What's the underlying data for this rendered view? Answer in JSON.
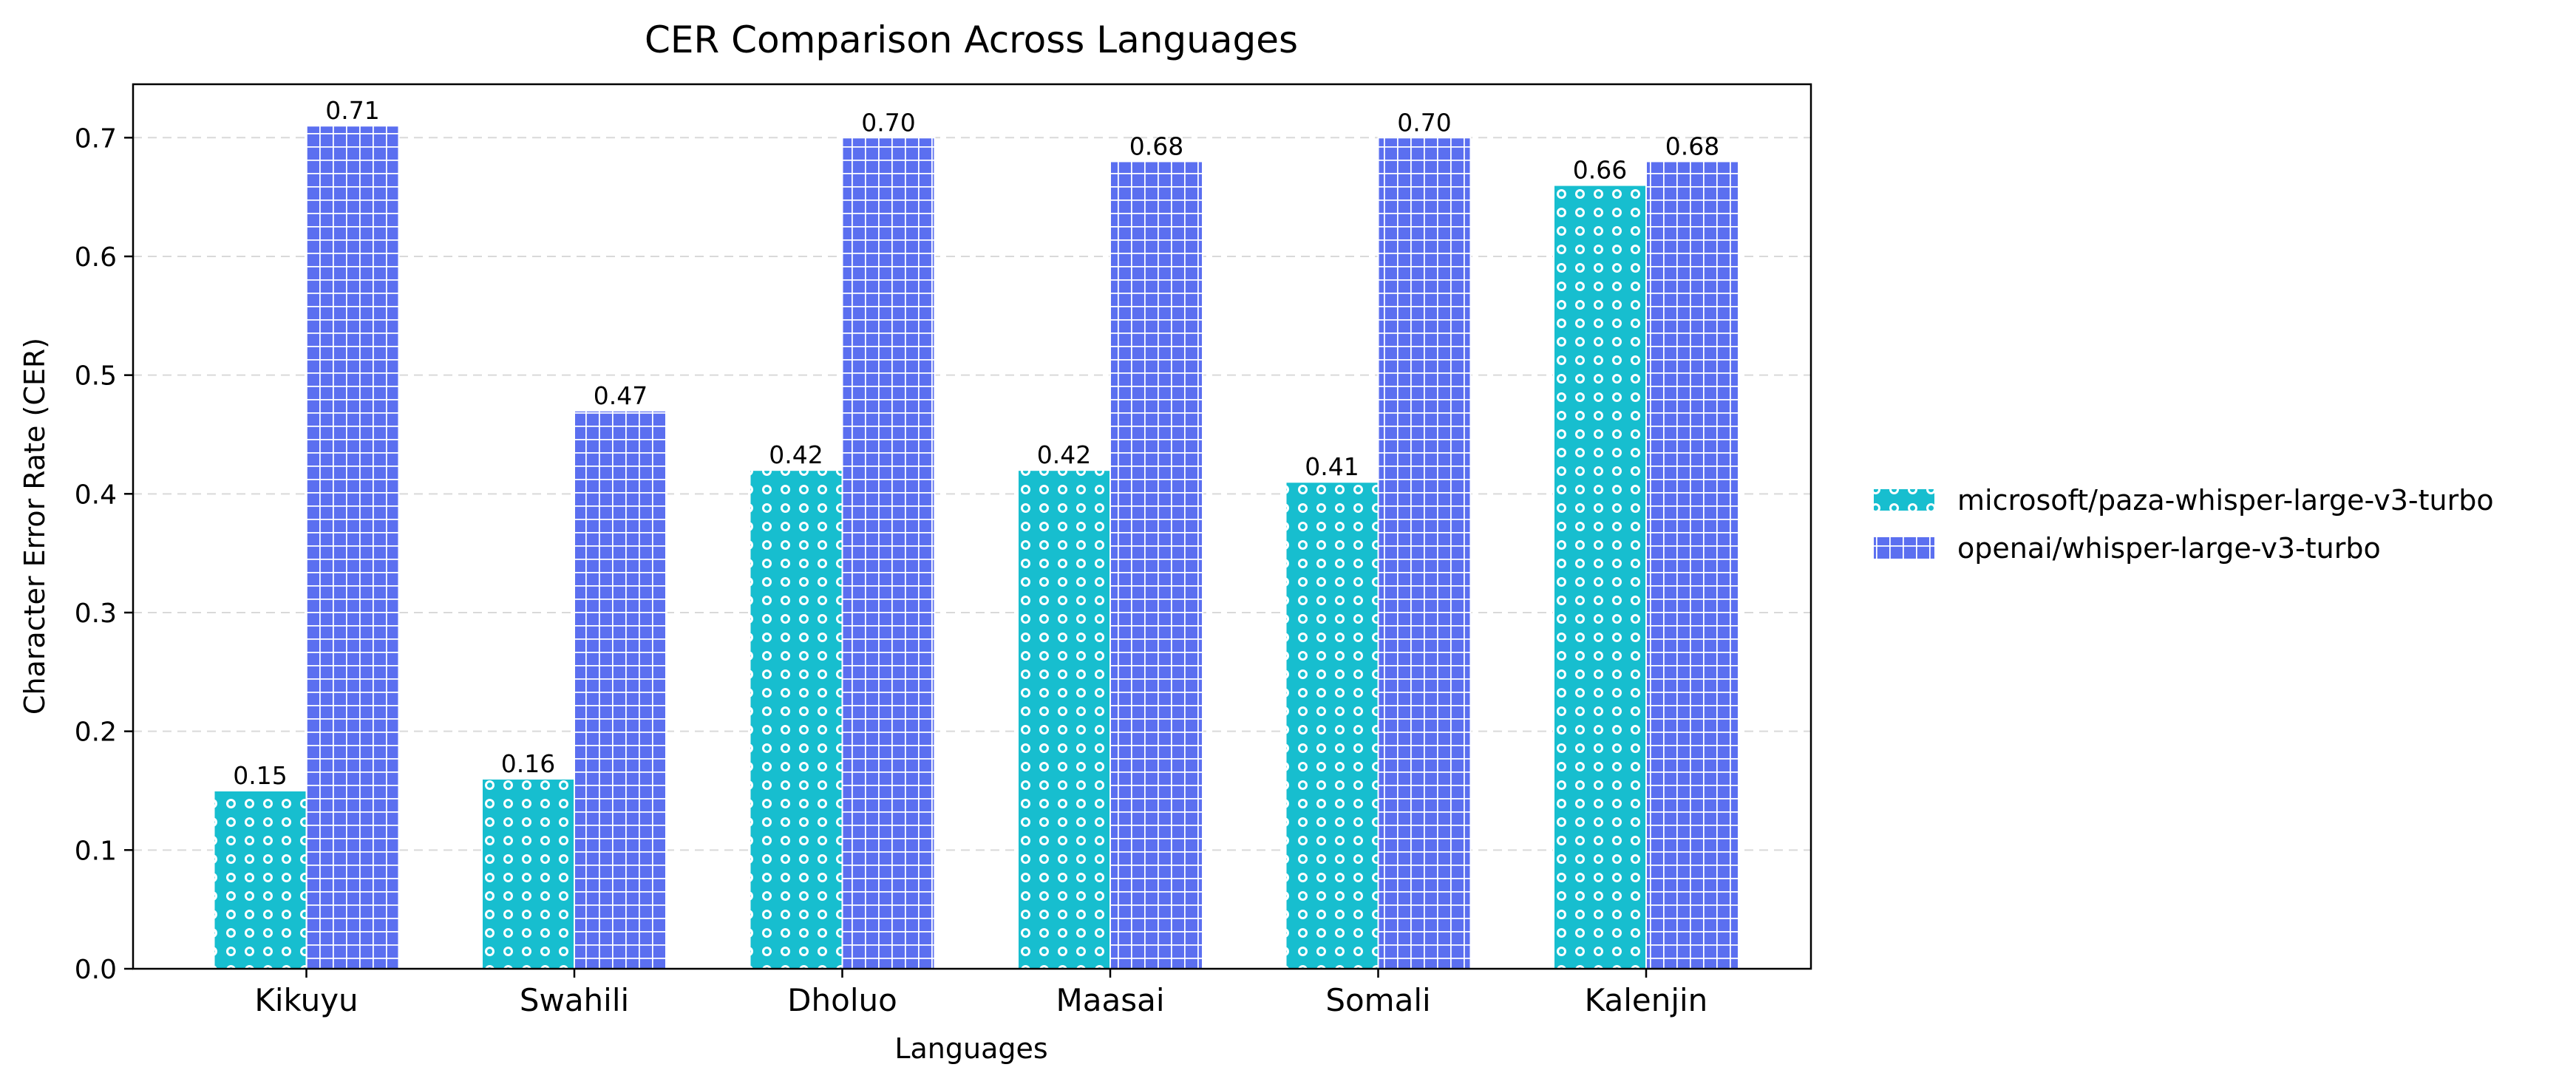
{
  "chart_data": {
    "type": "bar",
    "title": "CER Comparison Across Languages",
    "xlabel": "Languages",
    "ylabel": "Character Error Rate (CER)",
    "categories": [
      "Kikuyu",
      "Swahili",
      "Dholuo",
      "Maasai",
      "Somali",
      "Kalenjin"
    ],
    "ylim": [
      0,
      0.745
    ],
    "yticks": [
      "0.0",
      "0.1",
      "0.2",
      "0.3",
      "0.4",
      "0.5",
      "0.6",
      "0.7"
    ],
    "grid": "y-dashed",
    "legend_position": "right",
    "series": [
      {
        "name": "microsoft/paza-whisper-large-v3-turbo",
        "values": [
          0.15,
          0.16,
          0.42,
          0.42,
          0.41,
          0.66
        ],
        "labels": [
          "0.15",
          "0.16",
          "0.42",
          "0.42",
          "0.41",
          "0.66"
        ],
        "color": "#17becf",
        "hatch": "circles"
      },
      {
        "name": "openai/whisper-large-v3-turbo",
        "values": [
          0.71,
          0.47,
          0.7,
          0.68,
          0.7,
          0.68
        ],
        "labels": [
          "0.71",
          "0.47",
          "0.70",
          "0.68",
          "0.70",
          "0.68"
        ],
        "color": "#5b6ff0",
        "hatch": "grid"
      }
    ]
  }
}
